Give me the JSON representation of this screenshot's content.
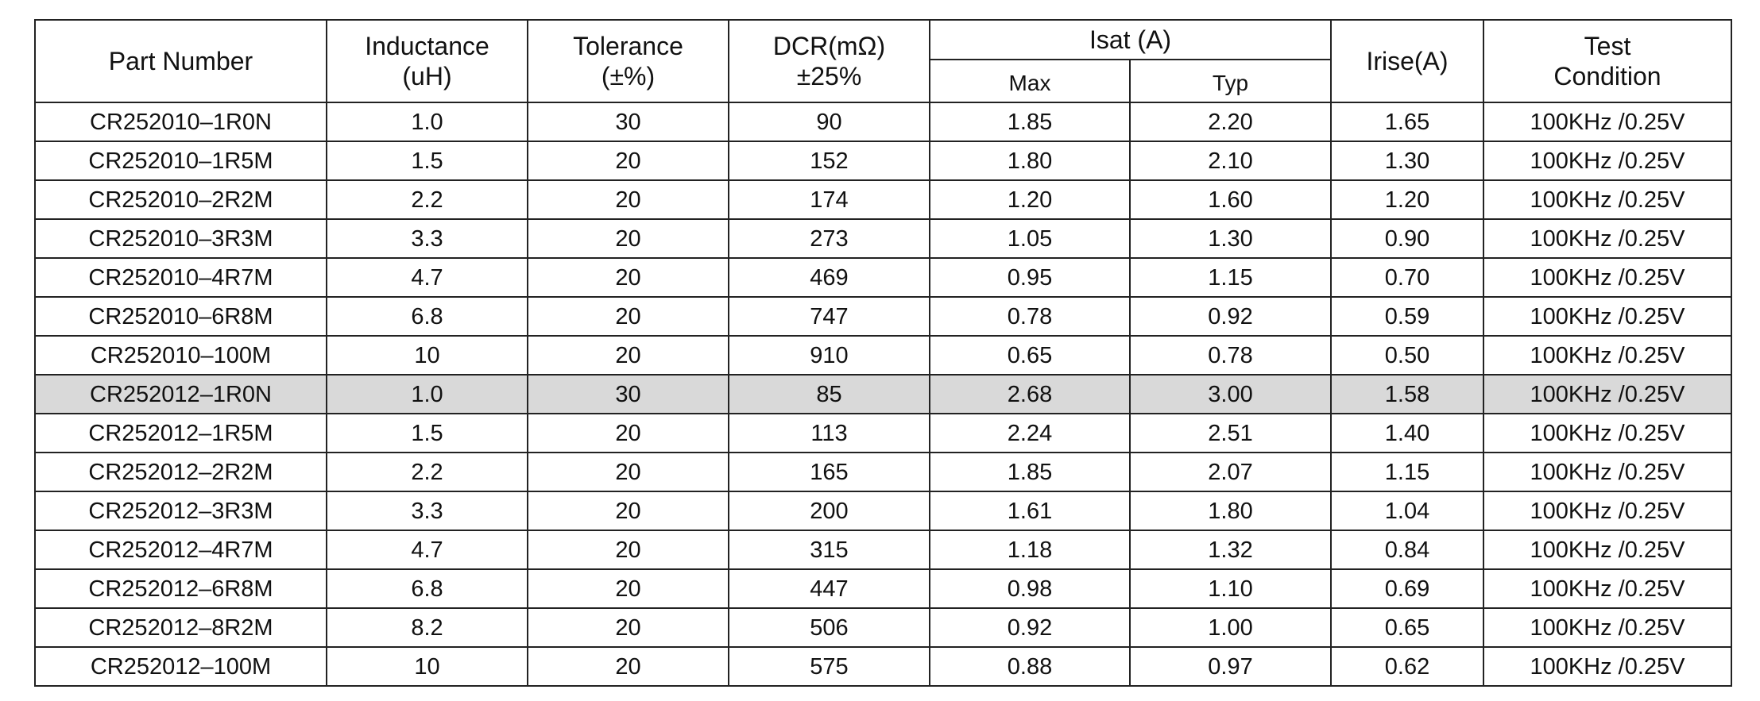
{
  "header": {
    "part_number": "Part Number",
    "inductance": [
      "Inductance",
      "(uH)"
    ],
    "tolerance": [
      "Tolerance",
      "(±%)"
    ],
    "dcr": [
      "DCR(mΩ)",
      "±25%"
    ],
    "isat": "Isat (A)",
    "isat_max": "Max",
    "isat_typ": "Typ",
    "irise": "Irise(A)",
    "test_condition": [
      "Test",
      "Condition"
    ]
  },
  "table": {
    "highlighted_row": 7,
    "rows": [
      [
        "CR252010–1R0N",
        "1.0",
        "30",
        "90",
        "1.85",
        "2.20",
        "1.65",
        "100KHz /0.25V"
      ],
      [
        "CR252010–1R5M",
        "1.5",
        "20",
        "152",
        "1.80",
        "2.10",
        "1.30",
        "100KHz /0.25V"
      ],
      [
        "CR252010–2R2M",
        "2.2",
        "20",
        "174",
        "1.20",
        "1.60",
        "1.20",
        "100KHz /0.25V"
      ],
      [
        "CR252010–3R3M",
        "3.3",
        "20",
        "273",
        "1.05",
        "1.30",
        "0.90",
        "100KHz /0.25V"
      ],
      [
        "CR252010–4R7M",
        "4.7",
        "20",
        "469",
        "0.95",
        "1.15",
        "0.70",
        "100KHz /0.25V"
      ],
      [
        "CR252010–6R8M",
        "6.8",
        "20",
        "747",
        "0.78",
        "0.92",
        "0.59",
        "100KHz /0.25V"
      ],
      [
        "CR252010–100M",
        "10",
        "20",
        "910",
        "0.65",
        "0.78",
        "0.50",
        "100KHz /0.25V"
      ],
      [
        "CR252012–1R0N",
        "1.0",
        "30",
        "85",
        "2.68",
        "3.00",
        "1.58",
        "100KHz /0.25V"
      ],
      [
        "CR252012–1R5M",
        "1.5",
        "20",
        "113",
        "2.24",
        "2.51",
        "1.40",
        "100KHz /0.25V"
      ],
      [
        "CR252012–2R2M",
        "2.2",
        "20",
        "165",
        "1.85",
        "2.07",
        "1.15",
        "100KHz /0.25V"
      ],
      [
        "CR252012–3R3M",
        "3.3",
        "20",
        "200",
        "1.61",
        "1.80",
        "1.04",
        "100KHz /0.25V"
      ],
      [
        "CR252012–4R7M",
        "4.7",
        "20",
        "315",
        "1.18",
        "1.32",
        "0.84",
        "100KHz /0.25V"
      ],
      [
        "CR252012–6R8M",
        "6.8",
        "20",
        "447",
        "0.98",
        "1.10",
        "0.69",
        "100KHz /0.25V"
      ],
      [
        "CR252012–8R2M",
        "8.2",
        "20",
        "506",
        "0.92",
        "1.00",
        "0.65",
        "100KHz /0.25V"
      ],
      [
        "CR252012–100M",
        "10",
        "20",
        "575",
        "0.88",
        "0.97",
        "0.62",
        "100KHz /0.25V"
      ]
    ]
  }
}
